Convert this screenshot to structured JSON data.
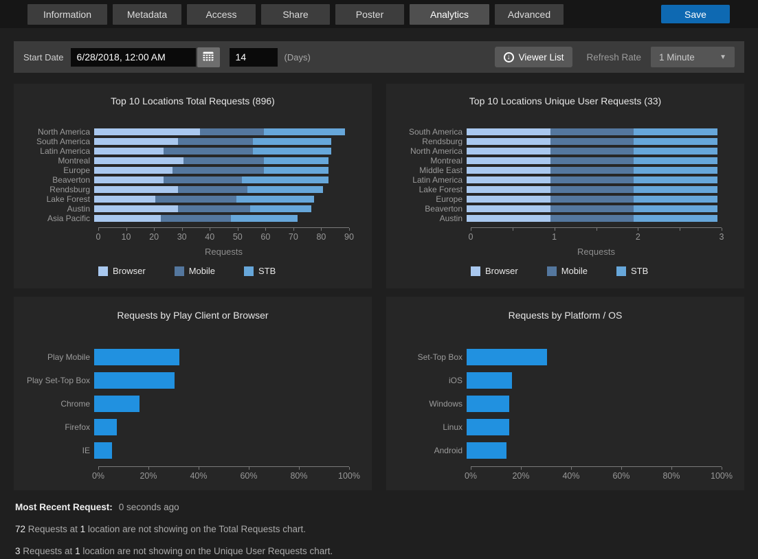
{
  "tabs": {
    "items": [
      {
        "label": "Information",
        "active": false
      },
      {
        "label": "Metadata",
        "active": false
      },
      {
        "label": "Access",
        "active": false
      },
      {
        "label": "Share",
        "active": false
      },
      {
        "label": "Poster",
        "active": false
      },
      {
        "label": "Analytics",
        "active": true
      },
      {
        "label": "Advanced",
        "active": false
      }
    ],
    "save_label": "Save"
  },
  "toolbar": {
    "start_date_label": "Start Date",
    "start_date_value": "6/28/2018, 12:00 AM",
    "days_value": "14",
    "days_suffix": "(Days)",
    "viewer_list_label": "Viewer List",
    "refresh_rate_label": "Refresh Rate",
    "refresh_rate_value": "1 Minute"
  },
  "colors": {
    "accent": "#0e69b2",
    "browser": "#a9c8ef",
    "mobile": "#54779e",
    "stb": "#67a7da",
    "bright_bar": "#2191e0"
  },
  "chart_data": [
    {
      "type": "bar",
      "stacked": true,
      "title": "Top 10 Locations Total Requests (896)",
      "categories": [
        "North America",
        "South America",
        "Latin America",
        "Montreal",
        "Europe",
        "Beaverton",
        "Rendsburg",
        "Lake Forest",
        "Austin",
        "Asia Pacific"
      ],
      "series": [
        {
          "name": "Browser",
          "color": "#a9c8ef",
          "values": [
            38,
            30,
            25,
            32,
            28,
            25,
            30,
            22,
            30,
            24
          ]
        },
        {
          "name": "Mobile",
          "color": "#54779e",
          "values": [
            23,
            27,
            32,
            29,
            33,
            28,
            25,
            29,
            26,
            25
          ]
        },
        {
          "name": "STB",
          "color": "#67a7da",
          "values": [
            29,
            28,
            28,
            23,
            23,
            31,
            27,
            28,
            22,
            24
          ]
        }
      ],
      "xlabel": "Requests",
      "xlim": [
        0,
        90
      ],
      "grid": false,
      "legend_position": "bottom",
      "ticks": [
        {
          "v": 0,
          "l": "0"
        },
        {
          "v": 10,
          "l": "10"
        },
        {
          "v": 20,
          "l": "20"
        },
        {
          "v": 30,
          "l": "30"
        },
        {
          "v": 40,
          "l": "40"
        },
        {
          "v": 50,
          "l": "50"
        },
        {
          "v": 60,
          "l": "60"
        },
        {
          "v": 70,
          "l": "70"
        },
        {
          "v": 80,
          "l": "80"
        },
        {
          "v": 90,
          "l": "90"
        }
      ]
    },
    {
      "type": "bar",
      "stacked": true,
      "title": "Top 10 Locations Unique User Requests (33)",
      "categories": [
        "South America",
        "Rendsburg",
        "North America",
        "Montreal",
        "Middle East",
        "Latin America",
        "Lake Forest",
        "Europe",
        "Beaverton",
        "Austin"
      ],
      "series": [
        {
          "name": "Browser",
          "color": "#a9c8ef",
          "values": [
            1,
            1,
            1,
            1,
            1,
            1,
            1,
            1,
            1,
            1
          ]
        },
        {
          "name": "Mobile",
          "color": "#54779e",
          "values": [
            1,
            1,
            1,
            1,
            1,
            1,
            1,
            1,
            1,
            1
          ]
        },
        {
          "name": "STB",
          "color": "#67a7da",
          "values": [
            1,
            1,
            1,
            1,
            1,
            1,
            1,
            1,
            1,
            1
          ]
        }
      ],
      "xlabel": "Requests",
      "xlim": [
        0,
        3
      ],
      "grid": false,
      "legend_position": "bottom",
      "ticks": [
        {
          "v": 0,
          "l": "0"
        },
        {
          "v": 0.5,
          "l": ""
        },
        {
          "v": 1,
          "l": "1"
        },
        {
          "v": 1.5,
          "l": ""
        },
        {
          "v": 2,
          "l": "2"
        },
        {
          "v": 2.5,
          "l": ""
        },
        {
          "v": 3,
          "l": "3"
        }
      ]
    },
    {
      "type": "bar",
      "stacked": false,
      "title": "Requests by Play Client or Browser",
      "categories": [
        "Play Mobile",
        "Play Set-Top Box",
        "Chrome",
        "Firefox",
        "IE"
      ],
      "values": [
        34,
        32,
        18,
        9,
        7
      ],
      "bar_color": "#2191e0",
      "xlabel": "",
      "xlim": [
        0,
        100
      ],
      "grid": false,
      "ticks": [
        {
          "v": 0,
          "l": "0%"
        },
        {
          "v": 20,
          "l": "20%"
        },
        {
          "v": 40,
          "l": "40%"
        },
        {
          "v": 60,
          "l": "60%"
        },
        {
          "v": 80,
          "l": "80%"
        },
        {
          "v": 100,
          "l": "100%"
        }
      ]
    },
    {
      "type": "bar",
      "stacked": false,
      "title": "Requests by Platform / OS",
      "categories": [
        "Set-Top Box",
        "iOS",
        "Windows",
        "Linux",
        "Android"
      ],
      "values": [
        32,
        18,
        17,
        17,
        16
      ],
      "bar_color": "#2191e0",
      "xlabel": "",
      "xlim": [
        0,
        100
      ],
      "grid": false,
      "ticks": [
        {
          "v": 0,
          "l": "0%"
        },
        {
          "v": 20,
          "l": "20%"
        },
        {
          "v": 40,
          "l": "40%"
        },
        {
          "v": 60,
          "l": "60%"
        },
        {
          "v": 80,
          "l": "80%"
        },
        {
          "v": 100,
          "l": "100%"
        }
      ]
    }
  ],
  "footer": {
    "most_recent_label": "Most Recent Request:",
    "most_recent_value": "0 seconds ago",
    "notes": [
      [
        {
          "t": "72",
          "s": true
        },
        {
          "t": " Requests at ",
          "s": false
        },
        {
          "t": "1",
          "s": true
        },
        {
          "t": " location are not showing on the Total Requests chart.",
          "s": false
        }
      ],
      [
        {
          "t": "3",
          "s": true
        },
        {
          "t": " Requests at ",
          "s": false
        },
        {
          "t": "1",
          "s": true
        },
        {
          "t": " location are not showing on the Unique User Requests chart.",
          "s": false
        }
      ]
    ]
  }
}
